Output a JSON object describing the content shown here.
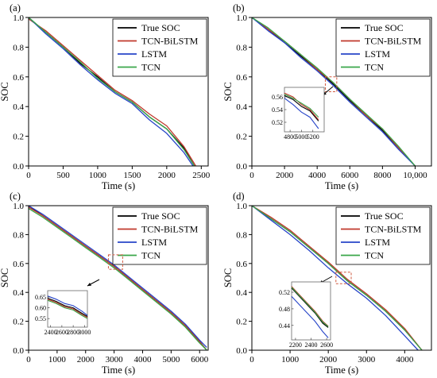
{
  "colors": {
    "True SOC": "#000000",
    "TCN-BiLSTM": "#c0392b",
    "LSTM": "#2745c8",
    "TCN": "#3aa64a",
    "dashed_box": "#d05a40"
  },
  "chart_data": [
    {
      "type": "line",
      "panel_label": "(a)",
      "xlabel": "Time (s)",
      "ylabel": "SOC",
      "xlim": [
        0,
        2600
      ],
      "ylim": [
        0,
        1.0
      ],
      "xticks": [
        0,
        500,
        1000,
        1500,
        2000,
        2500
      ],
      "xtick_labels": [
        "0",
        "500",
        "1000",
        "1500",
        "2000",
        "2500"
      ],
      "yticks": [
        0,
        0.2,
        0.4,
        0.6,
        0.8,
        1.0
      ],
      "ytick_labels": [
        "0.0",
        "0.2",
        "0.4",
        "0.6",
        "0.8",
        "1.0"
      ],
      "legend_position": "top-right",
      "series": [
        {
          "name": "True SOC",
          "x": [
            0,
            250,
            500,
            750,
            1000,
            1250,
            1500,
            1750,
            2000,
            2250,
            2400
          ],
          "y": [
            1.0,
            0.9,
            0.8,
            0.69,
            0.6,
            0.5,
            0.43,
            0.33,
            0.25,
            0.12,
            0.0
          ]
        },
        {
          "name": "TCN-BiLSTM",
          "x": [
            0,
            250,
            500,
            750,
            1000,
            1250,
            1500,
            1750,
            2000,
            2250,
            2420
          ],
          "y": [
            0.99,
            0.91,
            0.81,
            0.71,
            0.61,
            0.51,
            0.44,
            0.35,
            0.27,
            0.13,
            0.0
          ]
        },
        {
          "name": "LSTM",
          "x": [
            0,
            250,
            500,
            750,
            1000,
            1250,
            1500,
            1750,
            2000,
            2250,
            2380
          ],
          "y": [
            1.0,
            0.89,
            0.79,
            0.68,
            0.58,
            0.49,
            0.42,
            0.31,
            0.22,
            0.09,
            0.0
          ]
        },
        {
          "name": "TCN",
          "x": [
            0,
            250,
            500,
            750,
            1000,
            1250,
            1500,
            1750,
            2000,
            2250,
            2400
          ],
          "y": [
            1.0,
            0.9,
            0.8,
            0.7,
            0.59,
            0.5,
            0.43,
            0.33,
            0.25,
            0.11,
            0.0
          ]
        }
      ]
    },
    {
      "type": "line",
      "panel_label": "(b)",
      "xlabel": "Time (s)",
      "ylabel": "SOC",
      "xlim": [
        0,
        11000
      ],
      "ylim": [
        0,
        1.0
      ],
      "xticks": [
        0,
        2000,
        4000,
        6000,
        8000,
        10000
      ],
      "xtick_labels": [
        "0",
        "2000",
        "4000",
        "6000",
        "8000",
        "10,000"
      ],
      "yticks": [
        0,
        0.2,
        0.4,
        0.6,
        0.8,
        1.0
      ],
      "ytick_labels": [
        "0.0",
        "0.2",
        "0.4",
        "0.6",
        "0.8",
        "1.0"
      ],
      "legend_position": "top-right",
      "series": [
        {
          "name": "True SOC",
          "x": [
            0,
            1000,
            2000,
            3000,
            4000,
            5000,
            6000,
            7000,
            8000,
            9000,
            10000
          ],
          "y": [
            1.0,
            0.92,
            0.83,
            0.74,
            0.65,
            0.55,
            0.44,
            0.34,
            0.24,
            0.12,
            0.0
          ]
        },
        {
          "name": "TCN-BiLSTM",
          "x": [
            0,
            1000,
            2000,
            3000,
            4000,
            5000,
            6000,
            7000,
            8000,
            9000,
            10000
          ],
          "y": [
            1.0,
            0.92,
            0.84,
            0.75,
            0.65,
            0.56,
            0.45,
            0.34,
            0.25,
            0.12,
            0.0
          ]
        },
        {
          "name": "LSTM",
          "x": [
            0,
            1000,
            2000,
            3000,
            4000,
            5000,
            6000,
            7000,
            8000,
            9000,
            10000
          ],
          "y": [
            1.0,
            0.91,
            0.83,
            0.73,
            0.64,
            0.54,
            0.43,
            0.33,
            0.23,
            0.11,
            0.0
          ]
        },
        {
          "name": "TCN",
          "x": [
            0,
            1000,
            2000,
            3000,
            4000,
            5000,
            6000,
            7000,
            8000,
            9000,
            10000
          ],
          "y": [
            1.0,
            0.93,
            0.84,
            0.75,
            0.66,
            0.56,
            0.45,
            0.35,
            0.25,
            0.13,
            0.0
          ]
        }
      ],
      "zoom_box": {
        "x": [
          4500,
          5200
        ],
        "y": [
          0.5,
          0.6
        ]
      },
      "inset": {
        "xlim": [
          4700,
          5400
        ],
        "ylim": [
          0.505,
          0.575
        ],
        "xticks": [
          4800,
          5000,
          5200
        ],
        "xtick_labels": [
          "4800",
          "5000",
          "5200"
        ],
        "yticks": [
          0.52,
          0.54,
          0.56
        ],
        "ytick_labels": [
          "0.52",
          "0.54",
          "0.56"
        ],
        "series": [
          {
            "name": "True SOC",
            "x": [
              4700,
              4850,
              5000,
              5150,
              5300
            ],
            "y": [
              0.562,
              0.556,
              0.545,
              0.538,
              0.522
            ]
          },
          {
            "name": "TCN-BiLSTM",
            "x": [
              4700,
              4850,
              5000,
              5150,
              5300
            ],
            "y": [
              0.566,
              0.56,
              0.548,
              0.54,
              0.524
            ]
          },
          {
            "name": "LSTM",
            "x": [
              4700,
              4850,
              5000,
              5150,
              5300
            ],
            "y": [
              0.558,
              0.548,
              0.536,
              0.528,
              0.51
            ]
          },
          {
            "name": "TCN",
            "x": [
              4700,
              4850,
              5000,
              5150,
              5300
            ],
            "y": [
              0.564,
              0.558,
              0.55,
              0.542,
              0.528
            ]
          }
        ]
      }
    },
    {
      "type": "line",
      "panel_label": "(c)",
      "xlabel": "Time (s)",
      "ylabel": "SOC",
      "xlim": [
        0,
        6300
      ],
      "ylim": [
        0,
        1.0
      ],
      "xticks": [
        0,
        1000,
        2000,
        3000,
        4000,
        5000,
        6000
      ],
      "xtick_labels": [
        "0",
        "1000",
        "2000",
        "3000",
        "4000",
        "5000",
        "6000"
      ],
      "yticks": [
        0,
        0.2,
        0.4,
        0.6,
        0.8,
        1.0
      ],
      "ytick_labels": [
        "0.0",
        "0.2",
        "0.4",
        "0.6",
        "0.8",
        "1.0"
      ],
      "legend_position": "top-right",
      "series": [
        {
          "name": "True SOC",
          "x": [
            0,
            500,
            1000,
            1500,
            2000,
            2500,
            3000,
            3500,
            4000,
            4500,
            5000,
            5500,
            6000,
            6250
          ],
          "y": [
            1.0,
            0.93,
            0.86,
            0.79,
            0.72,
            0.65,
            0.58,
            0.5,
            0.42,
            0.34,
            0.26,
            0.17,
            0.06,
            0.0
          ]
        },
        {
          "name": "TCN-BiLSTM",
          "x": [
            0,
            500,
            1000,
            1500,
            2000,
            2500,
            3000,
            3500,
            4000,
            4500,
            5000,
            5500,
            6000,
            6250
          ],
          "y": [
            0.99,
            0.93,
            0.86,
            0.79,
            0.72,
            0.65,
            0.58,
            0.5,
            0.42,
            0.34,
            0.26,
            0.17,
            0.06,
            0.0
          ]
        },
        {
          "name": "LSTM",
          "x": [
            0,
            500,
            1000,
            1500,
            2000,
            2500,
            3000,
            3500,
            4000,
            4500,
            5000,
            5500,
            6000,
            6250
          ],
          "y": [
            1.0,
            0.94,
            0.87,
            0.8,
            0.73,
            0.66,
            0.59,
            0.51,
            0.43,
            0.35,
            0.27,
            0.18,
            0.07,
            0.02
          ]
        },
        {
          "name": "TCN",
          "x": [
            0,
            500,
            1000,
            1500,
            2000,
            2500,
            3000,
            3500,
            4000,
            4500,
            5000,
            5500,
            6000,
            6250
          ],
          "y": [
            0.98,
            0.92,
            0.85,
            0.78,
            0.71,
            0.64,
            0.57,
            0.49,
            0.41,
            0.33,
            0.25,
            0.16,
            0.05,
            0.0
          ]
        }
      ],
      "zoom_box": {
        "x": [
          2800,
          3300
        ],
        "y": [
          0.56,
          0.66
        ]
      },
      "inset": {
        "xlim": [
          2350,
          3050
        ],
        "ylim": [
          0.51,
          0.68
        ],
        "xticks": [
          2400,
          2600,
          2800,
          3000
        ],
        "xtick_labels": [
          "2400",
          "2600",
          "2800",
          "3000"
        ],
        "yticks": [
          0.55,
          0.6,
          0.65
        ],
        "ytick_labels": [
          "0.55",
          "0.60",
          "0.65"
        ],
        "series": [
          {
            "name": "True SOC",
            "x": [
              2350,
              2500,
              2650,
              2800,
              2950,
              3050
            ],
            "y": [
              0.645,
              0.63,
              0.61,
              0.6,
              0.575,
              0.56
            ]
          },
          {
            "name": "TCN-BiLSTM",
            "x": [
              2350,
              2500,
              2650,
              2800,
              2950,
              3050
            ],
            "y": [
              0.64,
              0.625,
              0.605,
              0.595,
              0.57,
              0.555
            ]
          },
          {
            "name": "LSTM",
            "x": [
              2350,
              2500,
              2650,
              2800,
              2950,
              3050
            ],
            "y": [
              0.655,
              0.64,
              0.62,
              0.61,
              0.585,
              0.565
            ]
          },
          {
            "name": "TCN",
            "x": [
              2350,
              2500,
              2650,
              2800,
              2950,
              3050
            ],
            "y": [
              0.635,
              0.62,
              0.6,
              0.59,
              0.565,
              0.55
            ]
          }
        ]
      }
    },
    {
      "type": "line",
      "panel_label": "(d)",
      "xlabel": "Time (s)",
      "ylabel": "SOC",
      "xlim": [
        0,
        4700
      ],
      "ylim": [
        0,
        1.0
      ],
      "xticks": [
        0,
        1000,
        2000,
        3000,
        4000
      ],
      "xtick_labels": [
        "0",
        "1000",
        "2000",
        "3000",
        "4000"
      ],
      "yticks": [
        0,
        0.2,
        0.4,
        0.6,
        0.8,
        1.0
      ],
      "ytick_labels": [
        "0.0",
        "0.2",
        "0.4",
        "0.6",
        "0.8",
        "1.0"
      ],
      "legend_position": "top-right",
      "series": [
        {
          "name": "True SOC",
          "x": [
            0,
            500,
            1000,
            1500,
            2000,
            2500,
            3000,
            3500,
            4000,
            4450
          ],
          "y": [
            1.0,
            0.91,
            0.82,
            0.71,
            0.6,
            0.48,
            0.38,
            0.27,
            0.14,
            0.0
          ]
        },
        {
          "name": "TCN-BiLSTM",
          "x": [
            0,
            500,
            1000,
            1500,
            2000,
            2500,
            3000,
            3500,
            4000,
            4450
          ],
          "y": [
            1.0,
            0.92,
            0.83,
            0.72,
            0.61,
            0.49,
            0.39,
            0.28,
            0.15,
            0.0
          ]
        },
        {
          "name": "LSTM",
          "x": [
            0,
            500,
            1000,
            1500,
            2000,
            2500,
            3000,
            3500,
            4000,
            4350
          ],
          "y": [
            1.0,
            0.9,
            0.8,
            0.69,
            0.57,
            0.46,
            0.36,
            0.24,
            0.1,
            0.0
          ]
        },
        {
          "name": "TCN",
          "x": [
            0,
            500,
            1000,
            1500,
            2000,
            2500,
            3000,
            3500,
            4000,
            4450
          ],
          "y": [
            1.0,
            0.91,
            0.82,
            0.71,
            0.6,
            0.48,
            0.38,
            0.27,
            0.14,
            0.0
          ]
        }
      ],
      "zoom_box": {
        "x": [
          2200,
          2600
        ],
        "y": [
          0.46,
          0.54
        ]
      },
      "inset": {
        "xlim": [
          2150,
          2650
        ],
        "ylim": [
          0.405,
          0.545
        ],
        "xticks": [
          2200,
          2400,
          2600
        ],
        "xtick_labels": [
          "2200",
          "2400",
          "2600"
        ],
        "yticks": [
          0.44,
          0.48,
          0.52
        ],
        "ytick_labels": [
          "0.44",
          "0.48",
          "0.52"
        ],
        "series": [
          {
            "name": "True SOC",
            "x": [
              2150,
              2250,
              2350,
              2450,
              2550,
              2620
            ],
            "y": [
              0.53,
              0.51,
              0.49,
              0.47,
              0.445,
              0.435
            ]
          },
          {
            "name": "TCN-BiLSTM",
            "x": [
              2150,
              2250,
              2350,
              2450,
              2550,
              2620
            ],
            "y": [
              0.534,
              0.514,
              0.494,
              0.474,
              0.45,
              0.438
            ]
          },
          {
            "name": "LSTM",
            "x": [
              2150,
              2250,
              2350,
              2450,
              2550,
              2620
            ],
            "y": [
              0.51,
              0.49,
              0.47,
              0.45,
              0.425,
              0.41
            ]
          },
          {
            "name": "TCN",
            "x": [
              2150,
              2250,
              2350,
              2450,
              2550,
              2620
            ],
            "y": [
              0.532,
              0.512,
              0.492,
              0.472,
              0.448,
              0.437
            ]
          }
        ]
      }
    }
  ]
}
